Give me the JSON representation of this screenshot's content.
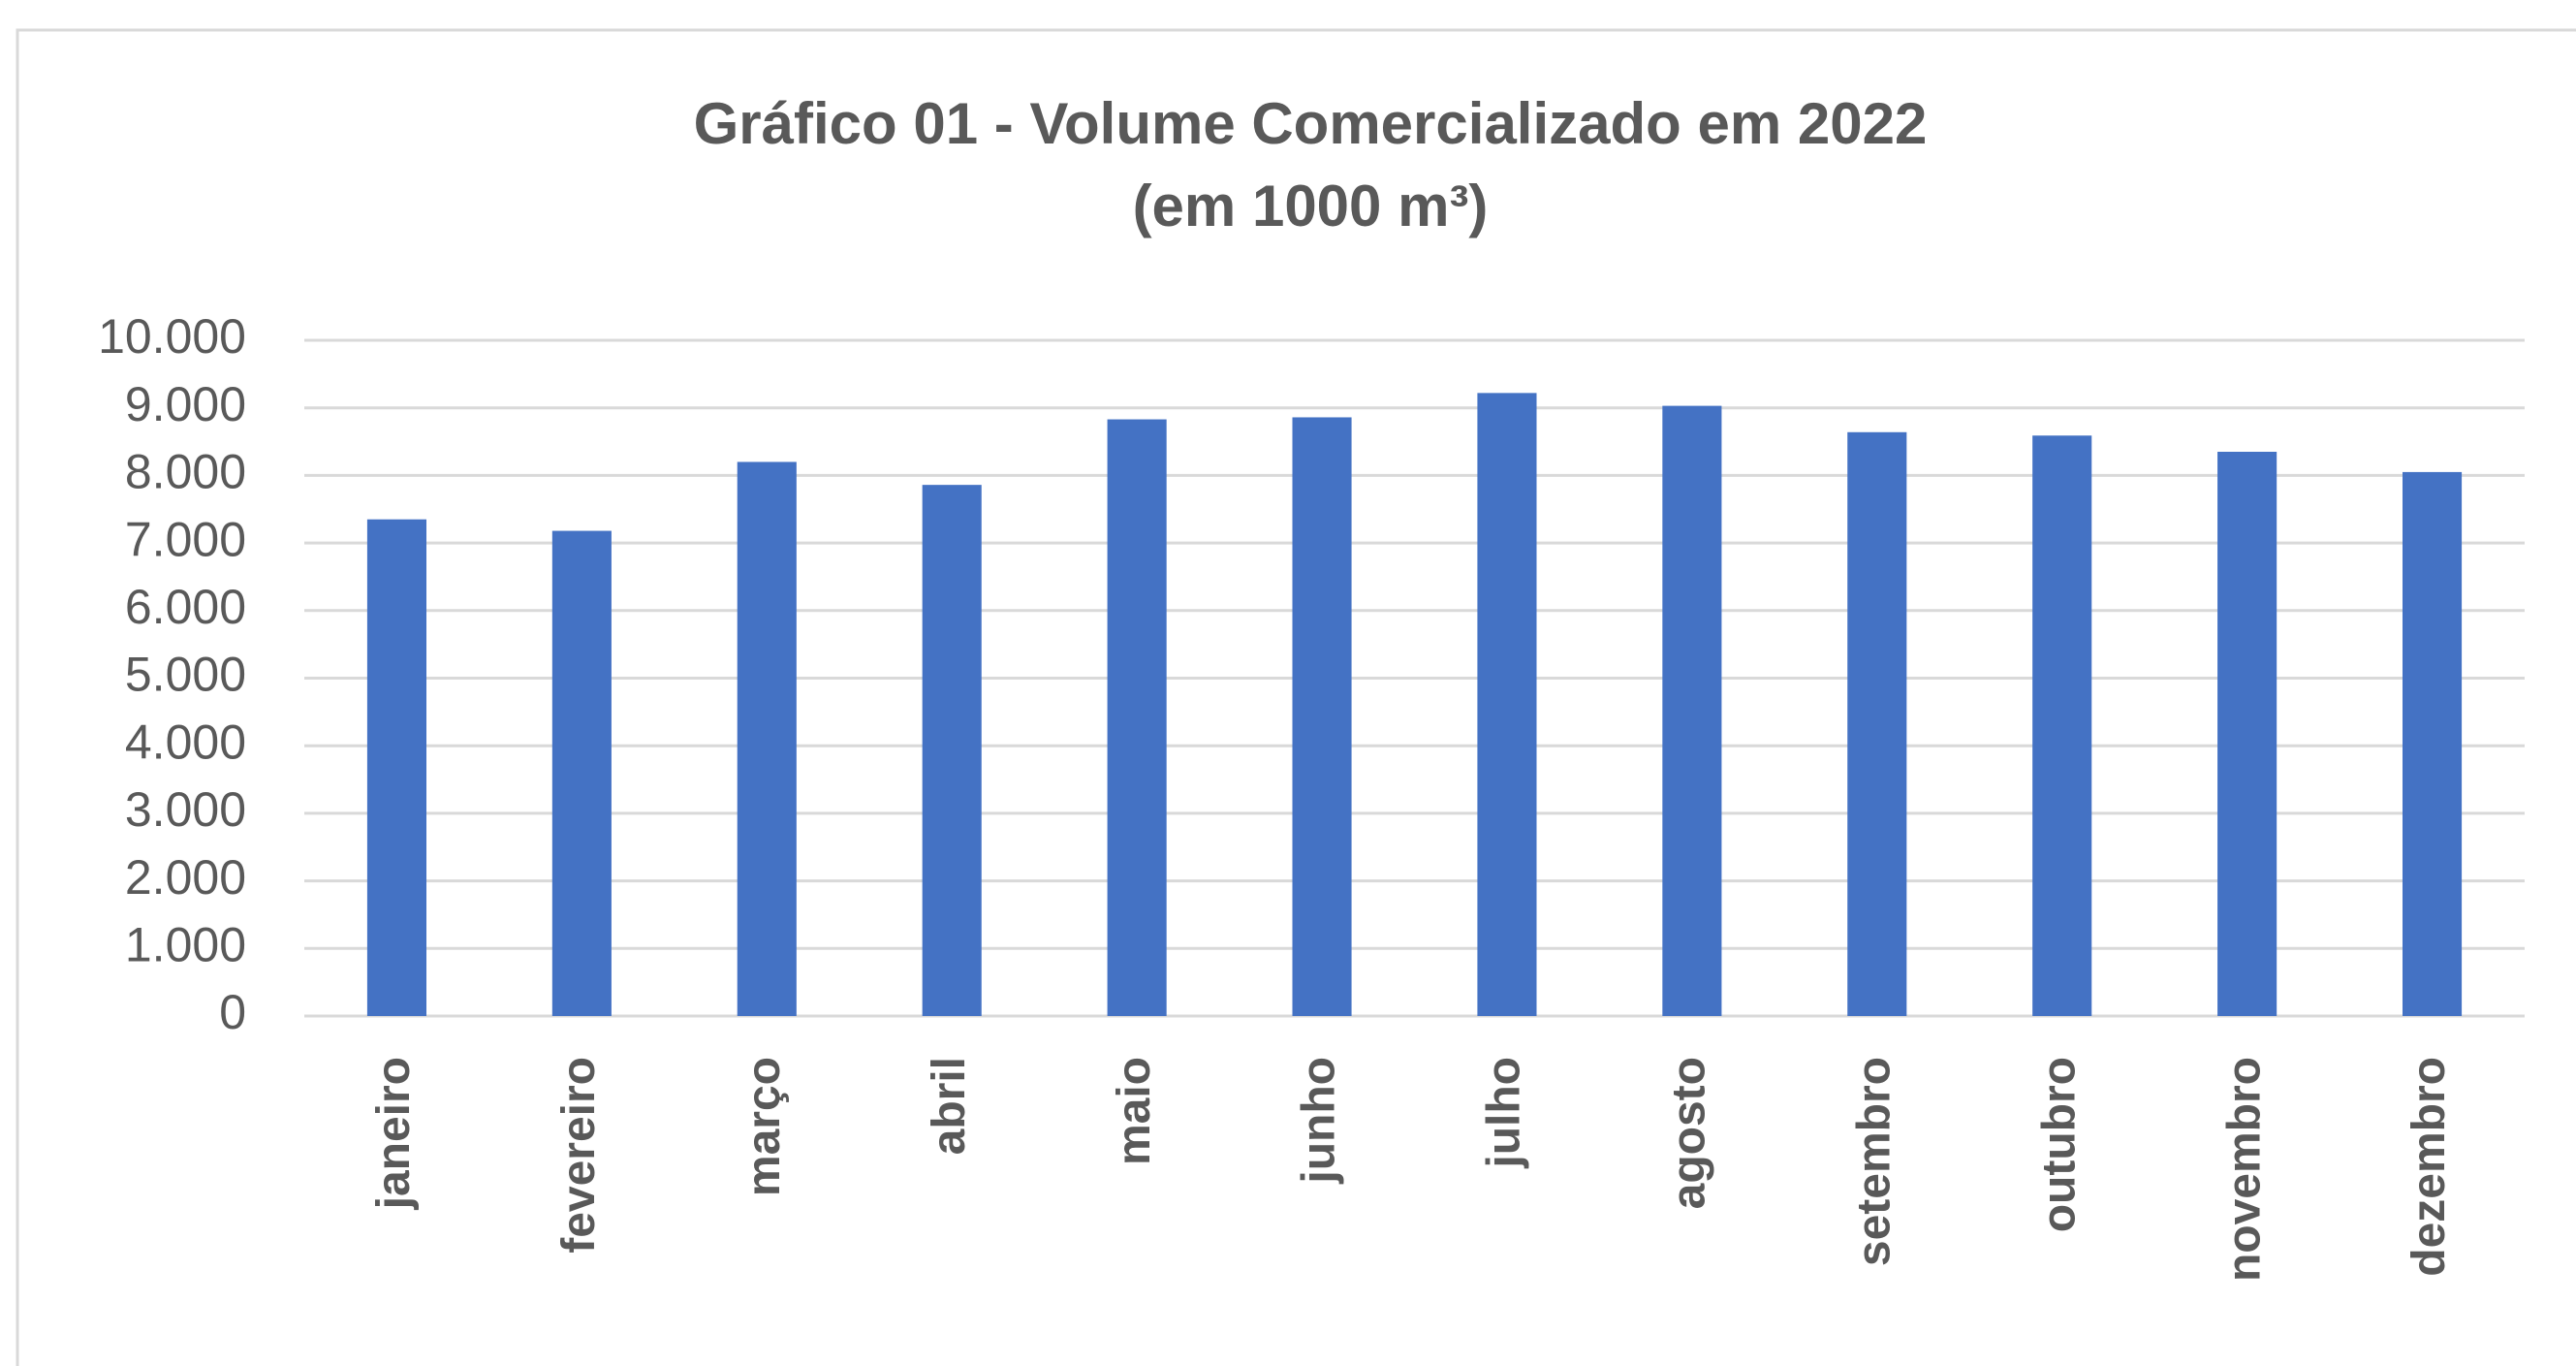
{
  "chart_data": {
    "type": "bar",
    "title": "Gráfico 01 - Volume Comercializado em 2022",
    "subtitle": "(em 1000 m³)",
    "categories": [
      "janeiro",
      "fevereiro",
      "março",
      "abril",
      "maio",
      "junho",
      "julho",
      "agosto",
      "setembro",
      "outubro",
      "novembro",
      "dezembro"
    ],
    "values": [
      7350,
      7180,
      8200,
      7860,
      8830,
      8860,
      9220,
      9030,
      8640,
      8590,
      8350,
      8050
    ],
    "color": "#4472c4",
    "ylim": [
      0,
      10000
    ],
    "yticks": [
      0,
      {
        "value": 1000,
        "label": "1.000"
      },
      {
        "value": 2000,
        "label": "2.000"
      },
      {
        "value": 3000,
        "label": "3.000"
      },
      {
        "value": 4000,
        "label": "4.000"
      },
      {
        "value": 5000,
        "label": "5.000"
      },
      {
        "value": 6000,
        "label": "6.000"
      },
      {
        "value": 7000,
        "label": "7.000"
      },
      {
        "value": 8000,
        "label": "8.000"
      },
      {
        "value": 9000,
        "label": "9.000"
      },
      {
        "value": 10000,
        "label": "10.000"
      }
    ],
    "grid": true
  }
}
